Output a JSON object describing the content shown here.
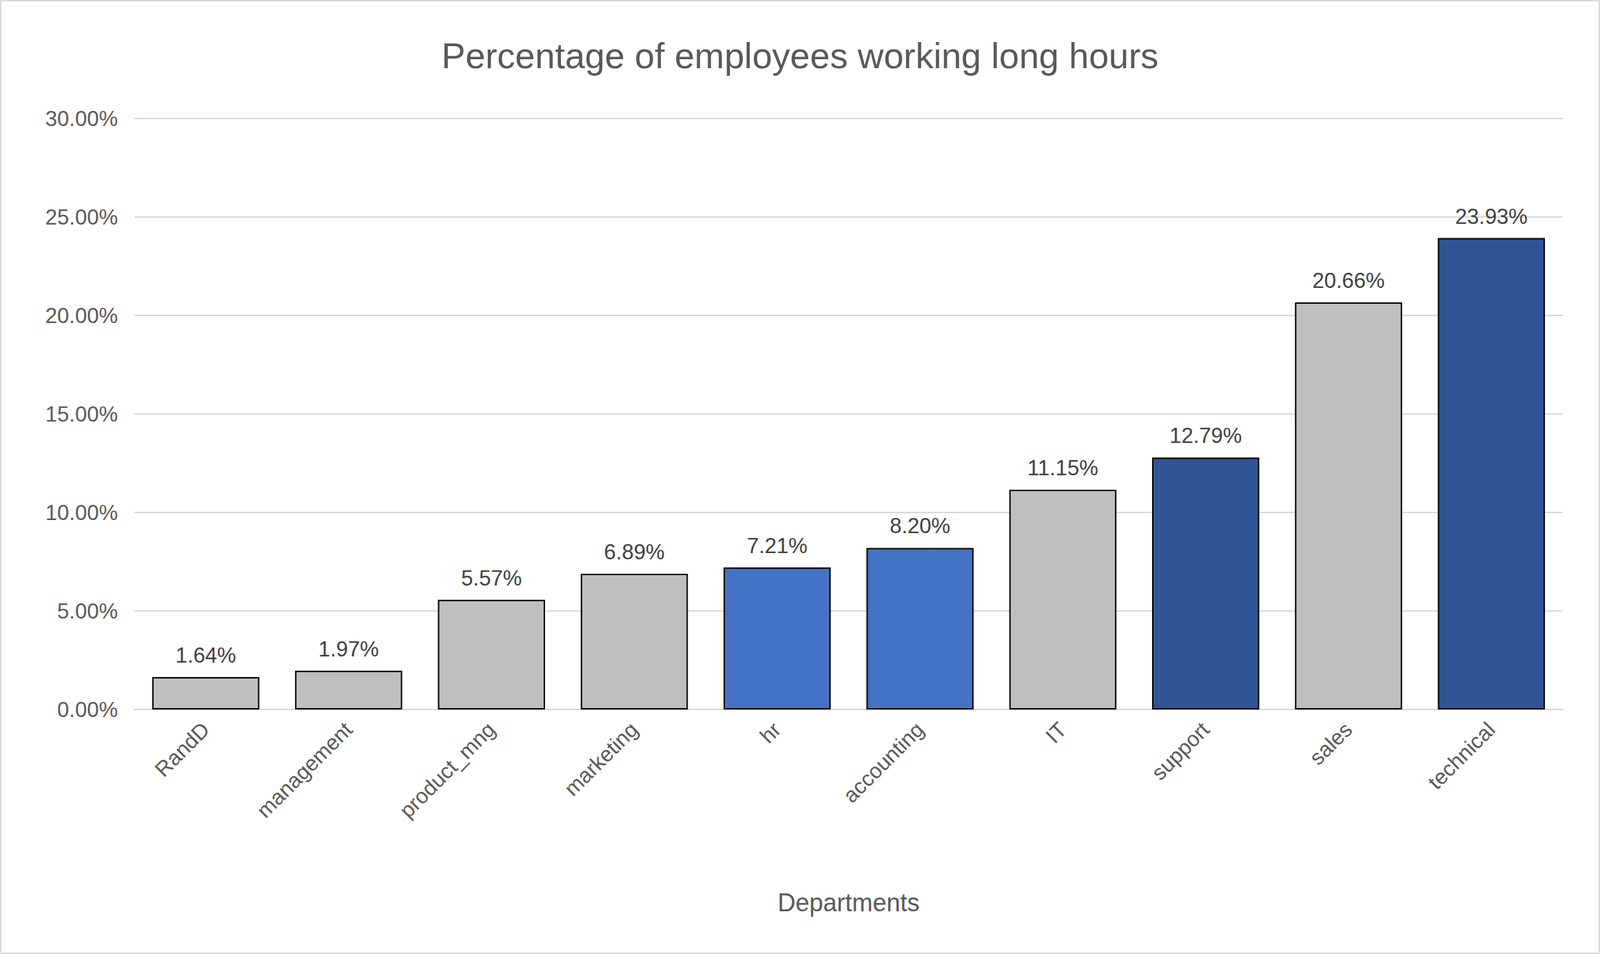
{
  "chart_data": {
    "type": "bar",
    "title": "Percentage of employees working long hours",
    "x_label": "Departments",
    "categories": [
      "RandD",
      "management",
      "product_mng",
      "marketing",
      "hr",
      "accounting",
      "IT",
      "support",
      "sales",
      "technical"
    ],
    "values": [
      1.64,
      1.97,
      5.57,
      6.89,
      7.21,
      8.2,
      11.15,
      12.79,
      20.66,
      23.93
    ],
    "value_labels": [
      "1.64%",
      "1.97%",
      "5.57%",
      "6.89%",
      "7.21%",
      "8.20%",
      "11.15%",
      "12.79%",
      "20.66%",
      "23.93%"
    ],
    "colors": [
      "#bfbfbf",
      "#bfbfbf",
      "#bfbfbf",
      "#bfbfbf",
      "#4472c4",
      "#4472c4",
      "#bfbfbf",
      "#2f5597",
      "#bfbfbf",
      "#2f5597"
    ],
    "ylim": [
      0,
      30
    ],
    "yticks": [
      {
        "value": 0,
        "label": "0.00%"
      },
      {
        "value": 5,
        "label": "5.00%"
      },
      {
        "value": 10,
        "label": "10.00%"
      },
      {
        "value": 15,
        "label": "15.00%"
      },
      {
        "value": 20,
        "label": "20.00%"
      },
      {
        "value": 25,
        "label": "25.00%"
      },
      {
        "value": 30,
        "label": "30.00%"
      }
    ],
    "grid": true,
    "data_labels": true
  }
}
